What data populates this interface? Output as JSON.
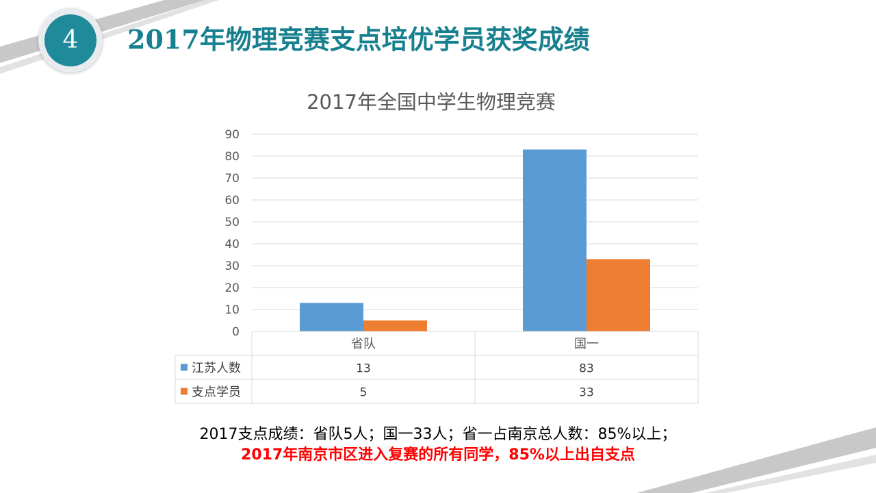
{
  "slide": {
    "number": "4",
    "title": "2017年物理竞赛支点培优学员获奖成绩",
    "note_line1": "2017支点成绩：省队5人；国一33人；省一占南京总人数：85%以上；",
    "note_line2": "2017年南京市区进入复赛的所有同学，85%以上出自支点"
  },
  "colors": {
    "accent": "#1f8a99",
    "title": "#17808e",
    "series_jiangsu": "#5b9bd5",
    "series_zhidian": "#ed7d31",
    "highlight": "#ff0000"
  },
  "chart_data": {
    "type": "bar",
    "title": "2017年全国中学生物理竞赛",
    "categories": [
      "省队",
      "国一"
    ],
    "series": [
      {
        "name": "江苏人数",
        "values": [
          13,
          83
        ],
        "color": "#5b9bd5"
      },
      {
        "name": "支点学员",
        "values": [
          5,
          33
        ],
        "color": "#ed7d31"
      }
    ],
    "ylim": [
      0,
      90
    ],
    "yticks": [
      0,
      10,
      20,
      30,
      40,
      50,
      60,
      70,
      80,
      90
    ],
    "grid": true,
    "legend": "data-table"
  }
}
